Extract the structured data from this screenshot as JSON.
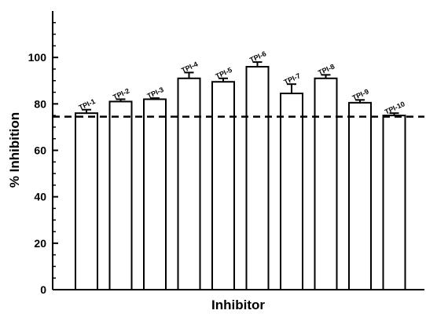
{
  "chart_data": {
    "type": "bar",
    "title": "",
    "xlabel": "Inhibitor",
    "ylabel": "% Inhibition",
    "ylim": [
      0,
      120
    ],
    "yticks": [
      0,
      20,
      40,
      60,
      80,
      100
    ],
    "grid": false,
    "legend": "none",
    "reference_line": {
      "value": 74.5,
      "style": "dashed"
    },
    "categories": [
      "TPI-1",
      "TPI-2",
      "TPI-3",
      "TPI-4",
      "TPI-5",
      "TPI-6",
      "TPI-7",
      "TPI-8",
      "TPI-9",
      "TPI-10"
    ],
    "values": [
      76,
      81,
      82,
      91,
      89.5,
      96,
      84.5,
      91,
      80.5,
      75
    ],
    "errors": [
      1.5,
      1,
      0.5,
      2.5,
      1.5,
      2,
      4,
      1.5,
      1.2,
      1
    ],
    "colors": {
      "bar_fill": "#ffffff",
      "stroke": "#000000"
    }
  }
}
